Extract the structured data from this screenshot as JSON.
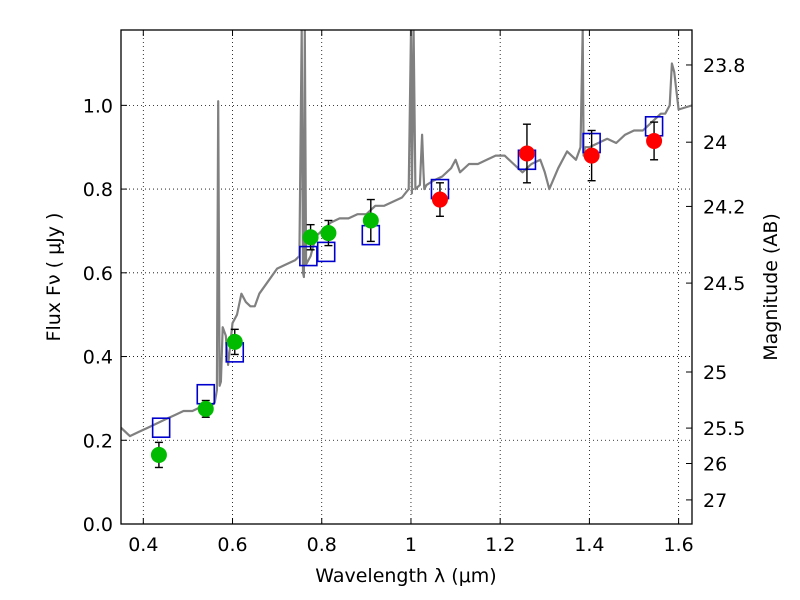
{
  "chart_data": {
    "type": "scatter",
    "xlabel": "Wavelength  λ (μm)",
    "ylabel": "Flux  Fν  ( μJy )",
    "y2label": "Magnitude (AB)",
    "xlim": [
      0.35,
      1.63
    ],
    "ylim": [
      0.0,
      1.18
    ],
    "grid": true,
    "x_ticks": [
      {
        "value": 0.4,
        "label": "0.4"
      },
      {
        "value": 0.6,
        "label": "0.6"
      },
      {
        "value": 0.8,
        "label": "0.8"
      },
      {
        "value": 1.0,
        "label": "1"
      },
      {
        "value": 1.2,
        "label": "1.2"
      },
      {
        "value": 1.4,
        "label": "1.4"
      },
      {
        "value": 1.6,
        "label": "1.6"
      }
    ],
    "y_ticks": [
      {
        "value": 0.0,
        "label": "0.0"
      },
      {
        "value": 0.2,
        "label": "0.2"
      },
      {
        "value": 0.4,
        "label": "0.4"
      },
      {
        "value": 0.6,
        "label": "0.6"
      },
      {
        "value": 0.8,
        "label": "0.8"
      },
      {
        "value": 1.0,
        "label": "1.0"
      }
    ],
    "mag_ticks": [
      {
        "value": 23.8,
        "label": "23.8"
      },
      {
        "value": 24.0,
        "label": "24"
      },
      {
        "value": 24.2,
        "label": "24.2"
      },
      {
        "value": 24.5,
        "label": "24.5"
      },
      {
        "value": 25.0,
        "label": "25"
      },
      {
        "value": 25.5,
        "label": "25.5"
      },
      {
        "value": 26.0,
        "label": "26"
      },
      {
        "value": 27.0,
        "label": "27"
      }
    ],
    "series": [
      {
        "kind": "model_spectrum",
        "color": "#808080",
        "x": [
          0.35,
          0.37,
          0.39,
          0.41,
          0.43,
          0.45,
          0.47,
          0.49,
          0.51,
          0.53,
          0.55,
          0.56,
          0.565,
          0.568,
          0.571,
          0.574,
          0.578,
          0.585,
          0.59,
          0.6,
          0.61,
          0.62,
          0.63,
          0.64,
          0.65,
          0.66,
          0.68,
          0.7,
          0.72,
          0.74,
          0.75,
          0.755,
          0.758,
          0.76,
          0.762,
          0.765,
          0.775,
          0.78,
          0.785,
          0.79,
          0.8,
          0.81,
          0.82,
          0.84,
          0.86,
          0.88,
          0.9,
          0.92,
          0.94,
          0.96,
          0.98,
          0.995,
          1.0,
          1.002,
          1.006,
          1.01,
          1.02,
          1.025,
          1.028,
          1.03,
          1.035,
          1.05,
          1.07,
          1.09,
          1.1,
          1.11,
          1.13,
          1.15,
          1.17,
          1.19,
          1.21,
          1.23,
          1.25,
          1.27,
          1.29,
          1.3,
          1.31,
          1.33,
          1.35,
          1.37,
          1.38,
          1.385,
          1.387,
          1.39,
          1.4,
          1.42,
          1.44,
          1.46,
          1.48,
          1.5,
          1.52,
          1.54,
          1.56,
          1.57,
          1.58,
          1.585,
          1.59,
          1.6,
          1.63
        ],
        "y": [
          0.23,
          0.21,
          0.22,
          0.23,
          0.24,
          0.25,
          0.26,
          0.27,
          0.27,
          0.28,
          0.28,
          0.29,
          0.32,
          1.01,
          0.33,
          0.34,
          0.47,
          0.45,
          0.38,
          0.48,
          0.5,
          0.55,
          0.53,
          0.52,
          0.52,
          0.55,
          0.58,
          0.61,
          0.62,
          0.63,
          0.64,
          1.18,
          0.6,
          0.59,
          1.18,
          0.62,
          0.64,
          0.66,
          0.68,
          0.69,
          0.7,
          0.71,
          0.72,
          0.73,
          0.73,
          0.74,
          0.74,
          0.76,
          0.76,
          0.77,
          0.78,
          0.8,
          1.18,
          0.79,
          1.18,
          0.8,
          0.81,
          0.93,
          0.84,
          0.8,
          0.81,
          0.82,
          0.83,
          0.85,
          0.87,
          0.84,
          0.86,
          0.86,
          0.87,
          0.88,
          0.88,
          0.86,
          0.84,
          0.86,
          0.87,
          0.84,
          0.8,
          0.85,
          0.89,
          0.87,
          0.9,
          1.18,
          0.88,
          0.9,
          0.9,
          0.91,
          0.92,
          0.91,
          0.93,
          0.94,
          0.94,
          0.96,
          0.98,
          0.98,
          1.0,
          1.1,
          1.08,
          0.99,
          1.0
        ]
      },
      {
        "kind": "model_bandpass",
        "color": "#0000cc",
        "x": [
          0.44,
          0.54,
          0.605,
          0.77,
          0.81,
          0.91,
          1.065,
          1.26,
          1.405,
          1.545
        ],
        "y": [
          0.23,
          0.31,
          0.41,
          0.64,
          0.65,
          0.69,
          0.8,
          0.87,
          0.91,
          0.95
        ]
      },
      {
        "kind": "observed_optical",
        "color": "#00bb00",
        "x": [
          0.435,
          0.54,
          0.605,
          0.775,
          0.815,
          0.91
        ],
        "y": [
          0.165,
          0.275,
          0.435,
          0.685,
          0.695,
          0.725
        ],
        "err": [
          0.03,
          0.02,
          0.03,
          0.03,
          0.03,
          0.05
        ]
      },
      {
        "kind": "observed_nir",
        "color": "#ff0000",
        "x": [
          1.065,
          1.26,
          1.405,
          1.545
        ],
        "y": [
          0.775,
          0.885,
          0.88,
          0.915
        ],
        "err": [
          0.04,
          0.07,
          0.06,
          0.045
        ]
      }
    ]
  }
}
